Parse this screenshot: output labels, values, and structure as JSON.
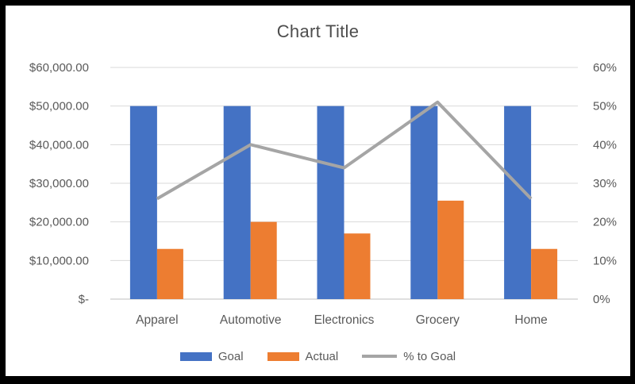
{
  "chart_data": {
    "type": "combo",
    "title": "Chart Title",
    "categories": [
      "Apparel",
      "Automotive",
      "Electronics",
      "Grocery",
      "Home"
    ],
    "series": [
      {
        "name": "Goal",
        "type": "bar",
        "axis": "left",
        "color": "#4472C4",
        "values": [
          50000,
          50000,
          50000,
          50000,
          50000
        ]
      },
      {
        "name": "Actual",
        "type": "bar",
        "axis": "left",
        "color": "#ED7D31",
        "values": [
          13000,
          20000,
          17000,
          25500,
          13000
        ]
      },
      {
        "name": "% to Goal",
        "type": "line",
        "axis": "right",
        "color": "#A5A5A5",
        "values": [
          0.26,
          0.4,
          0.34,
          0.51,
          0.26
        ]
      }
    ],
    "left_axis": {
      "min": 0,
      "max": 60000,
      "step": 10000,
      "tick_labels": [
        "$-",
        "$10,000.00",
        "$20,000.00",
        "$30,000.00",
        "$40,000.00",
        "$50,000.00",
        "$60,000.00"
      ]
    },
    "right_axis": {
      "min": 0,
      "max": 0.6,
      "step": 0.1,
      "tick_labels": [
        "0%",
        "10%",
        "20%",
        "30%",
        "40%",
        "50%",
        "60%"
      ]
    },
    "legend": {
      "position": "bottom",
      "entries": [
        "Goal",
        "Actual",
        "% to Goal"
      ]
    },
    "grid": true
  },
  "colors": {
    "frame": "#000000",
    "background": "#FFFFFF",
    "title_text": "#4d4d4d",
    "axis_text": "#595959",
    "gridline": "#D9D9D9",
    "axis_line": "#BFBFBF"
  }
}
